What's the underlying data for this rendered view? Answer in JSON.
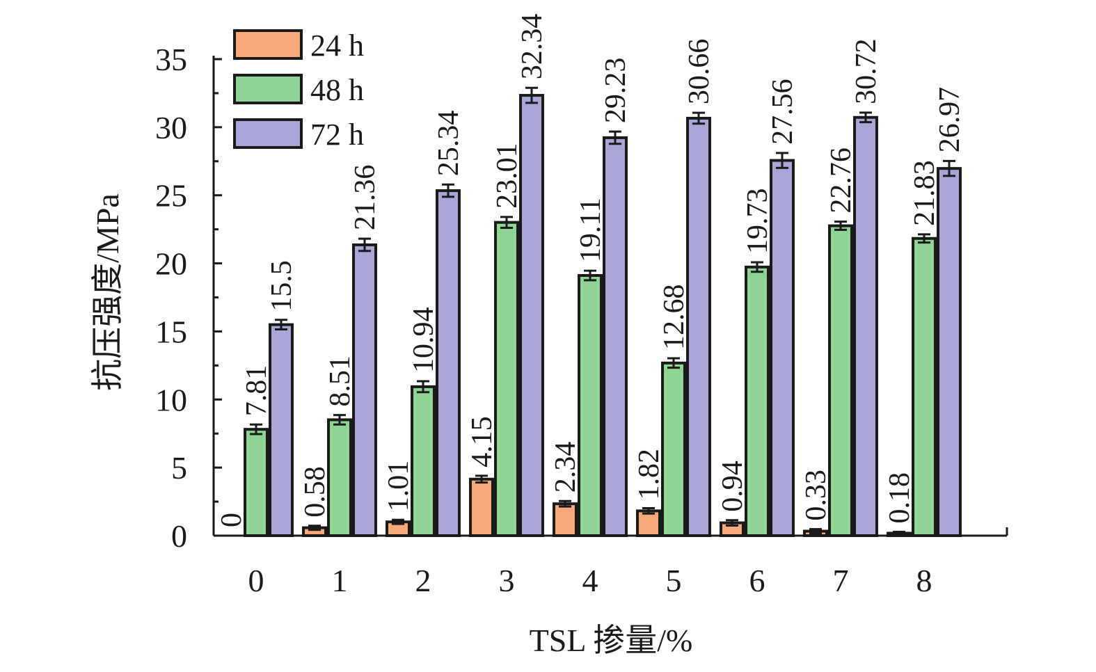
{
  "chart_data": {
    "type": "bar",
    "xlabel": "TSL 掺量/%",
    "ylabel": "抗压强度/MPa",
    "categories": [
      "0",
      "1",
      "2",
      "3",
      "4",
      "5",
      "6",
      "7",
      "8"
    ],
    "ylim": [
      0,
      35
    ],
    "yticks": [
      "0",
      "5",
      "10",
      "15",
      "20",
      "25",
      "30",
      "35"
    ],
    "grid": false,
    "legend_position": "top-left",
    "error_bars": true,
    "series": [
      {
        "name": "24 h",
        "color": "#f7a97c",
        "values": [
          0,
          0.58,
          1.01,
          4.15,
          2.34,
          1.82,
          0.94,
          0.33,
          0.18
        ],
        "labels": [
          "0",
          "0.58",
          "1.01",
          "4.15",
          "2.34",
          "1.82",
          "0.94",
          "0.33",
          "0.18"
        ],
        "errors": [
          0,
          0.15,
          0.15,
          0.25,
          0.2,
          0.2,
          0.2,
          0.15,
          0.1
        ]
      },
      {
        "name": "48 h",
        "color": "#8fd494",
        "values": [
          7.81,
          8.51,
          10.94,
          23.01,
          19.11,
          12.68,
          19.73,
          22.76,
          21.83
        ],
        "labels": [
          "7.81",
          "8.51",
          "10.94",
          "23.01",
          "19.11",
          "12.68",
          "19.73",
          "22.76",
          "21.83"
        ],
        "errors": [
          0.35,
          0.35,
          0.4,
          0.4,
          0.35,
          0.35,
          0.35,
          0.3,
          0.3
        ]
      },
      {
        "name": "72 h",
        "color": "#a7a6d6",
        "values": [
          15.5,
          21.36,
          25.34,
          32.34,
          29.23,
          30.66,
          27.56,
          30.72,
          26.97
        ],
        "labels": [
          "15.5",
          "21.36",
          "25.34",
          "32.34",
          "29.23",
          "30.66",
          "27.56",
          "30.72",
          "26.97"
        ],
        "errors": [
          0.35,
          0.45,
          0.45,
          0.55,
          0.45,
          0.4,
          0.55,
          0.35,
          0.55
        ]
      }
    ]
  }
}
